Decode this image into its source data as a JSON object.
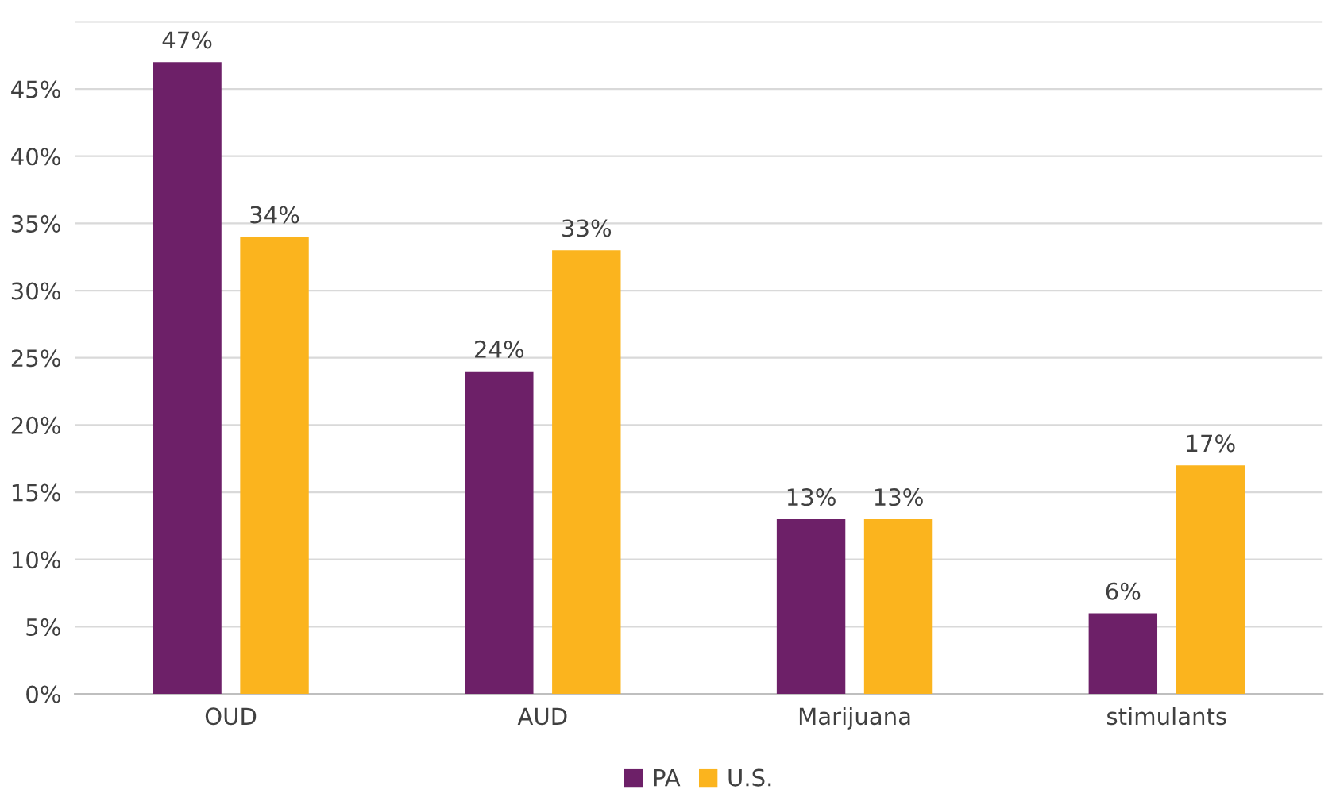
{
  "chart_data": {
    "type": "bar",
    "categories": [
      "OUD",
      "AUD",
      "Marijuana",
      "stimulants"
    ],
    "series": [
      {
        "name": "PA",
        "color": "#6d2068",
        "values": [
          47,
          24,
          13,
          6
        ],
        "value_labels": [
          "47%",
          "24%",
          "13%",
          "6%"
        ]
      },
      {
        "name": "U.S.",
        "color": "#fbb41e",
        "values": [
          34,
          33,
          13,
          17
        ],
        "value_labels": [
          "34%",
          "33%",
          "13%",
          "17%"
        ]
      }
    ],
    "ylim": [
      0,
      50
    ],
    "yticks": [
      {
        "value": 0,
        "label": "0%"
      },
      {
        "value": 5,
        "label": "5%"
      },
      {
        "value": 10,
        "label": "10%"
      },
      {
        "value": 15,
        "label": "15%"
      },
      {
        "value": 20,
        "label": "20%"
      },
      {
        "value": 25,
        "label": "25%"
      },
      {
        "value": 30,
        "label": "30%"
      },
      {
        "value": 35,
        "label": "35%"
      },
      {
        "value": 40,
        "label": "40%"
      },
      {
        "value": 45,
        "label": "45%"
      },
      {
        "value": 50,
        "label": null
      }
    ],
    "grid": "y",
    "legend": "bottom"
  }
}
